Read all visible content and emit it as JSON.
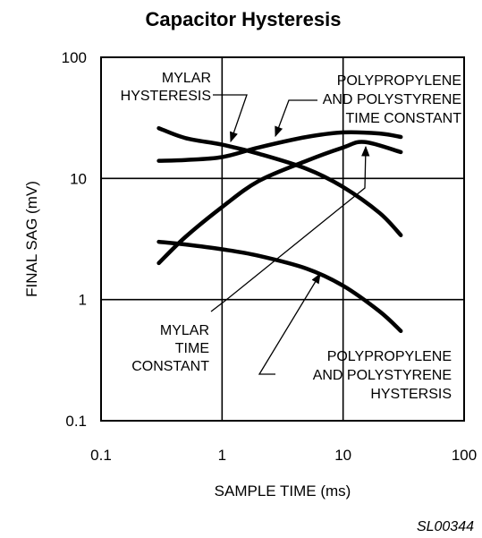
{
  "chart_data": {
    "type": "line",
    "title": "Capacitor Hysteresis",
    "xlabel": "SAMPLE TIME (ms)",
    "ylabel": "FINAL SAG (mV)",
    "xscale": "log",
    "yscale": "log",
    "xlim": [
      0.1,
      100
    ],
    "ylim": [
      0.1,
      100
    ],
    "x_ticks": [
      "0.1",
      "1",
      "10",
      "100"
    ],
    "y_ticks": [
      "100",
      "10",
      "1",
      "0.1"
    ],
    "grid": true,
    "series": [
      {
        "key": "mylar-hysteresis",
        "x": [
          0.3,
          0.5,
          1,
          2,
          5,
          10,
          20,
          30
        ],
        "y": [
          26,
          21.5,
          19,
          16,
          12,
          8.5,
          5.2,
          3.4
        ]
      },
      {
        "key": "pp-ps-time-constant",
        "x": [
          0.3,
          0.5,
          1,
          2,
          5,
          10,
          20,
          30
        ],
        "y": [
          14,
          14.2,
          15,
          18,
          22,
          24,
          23.5,
          22
        ]
      },
      {
        "key": "mylar-time-constant",
        "x": [
          0.3,
          0.5,
          1,
          2,
          5,
          10,
          15,
          30
        ],
        "y": [
          2,
          3.3,
          5.8,
          9.5,
          14,
          18,
          20,
          16.5
        ]
      },
      {
        "key": "pp-ps-hysteresis",
        "x": [
          0.3,
          0.5,
          1,
          2,
          5,
          10,
          20,
          30
        ],
        "y": [
          3,
          2.85,
          2.6,
          2.3,
          1.8,
          1.3,
          0.8,
          0.55
        ]
      }
    ],
    "annotations": [
      {
        "target": "mylar-hysteresis",
        "lines": [
          "MYLAR",
          "HYSTERESIS"
        ]
      },
      {
        "target": "pp-ps-time-constant",
        "lines": [
          "POLYPROPYLENE",
          "AND POLYSTYRENE",
          "TIME CONSTANT"
        ]
      },
      {
        "target": "mylar-time-constant",
        "lines": [
          "MYLAR",
          "TIME",
          "CONSTANT"
        ]
      },
      {
        "target": "pp-ps-hysteresis",
        "lines": [
          "POLYPROPYLENE",
          "AND POLYSTYRENE",
          "HYSTERSIS"
        ]
      }
    ],
    "figure_code": "SL00344"
  }
}
